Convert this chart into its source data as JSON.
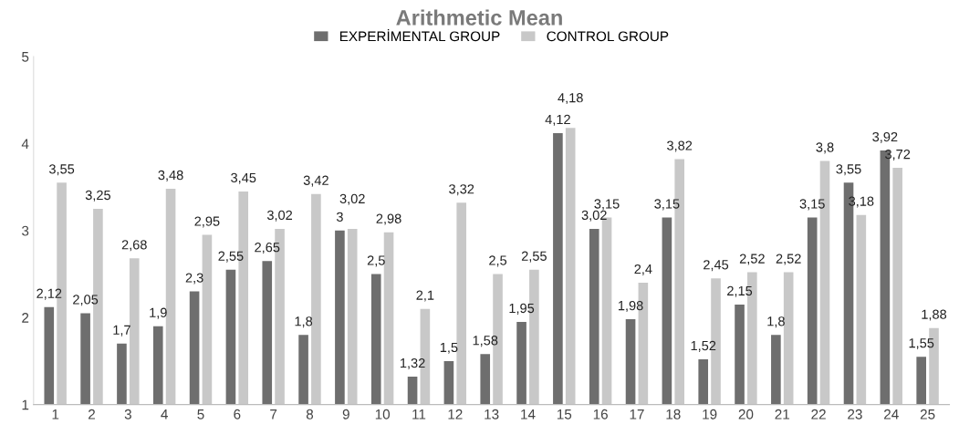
{
  "chart_data": {
    "type": "bar",
    "title": "Arithmetic Mean",
    "categories": [
      "1",
      "2",
      "3",
      "4",
      "5",
      "6",
      "7",
      "8",
      "9",
      "10",
      "11",
      "12",
      "13",
      "14",
      "15",
      "16",
      "17",
      "18",
      "19",
      "20",
      "21",
      "22",
      "23",
      "24",
      "25"
    ],
    "series": [
      {
        "name": "EXPERİMENTAL GROUP",
        "color": "#6e6e6e",
        "values": [
          2.12,
          2.05,
          1.7,
          1.9,
          2.3,
          2.55,
          2.65,
          1.8,
          3,
          2.5,
          1.32,
          1.5,
          1.58,
          1.95,
          4.12,
          3.02,
          1.98,
          3.15,
          1.52,
          2.15,
          1.8,
          3.15,
          3.55,
          3.92,
          1.55
        ],
        "value_labels": [
          "2,12",
          "2,05",
          "1,7",
          "1,9",
          "2,3",
          "2,55",
          "2,65",
          "1,8",
          "3",
          "2,5",
          "1,32",
          "1,5",
          "1,58",
          "1,95",
          "4,12",
          "3,02",
          "1,98",
          "3,15",
          "1,52",
          "2,15",
          "1,8",
          "3,15",
          "3,55",
          "3,92",
          "1,55"
        ]
      },
      {
        "name": "CONTROL GROUP",
        "color": "#c8c8c8",
        "values": [
          3.55,
          3.25,
          2.68,
          3.48,
          2.95,
          3.45,
          3.02,
          3.42,
          3.02,
          2.98,
          2.1,
          3.32,
          2.5,
          2.55,
          4.18,
          3.15,
          2.4,
          3.82,
          2.45,
          2.52,
          2.52,
          3.8,
          3.18,
          3.72,
          1.88
        ],
        "value_labels": [
          "3,55",
          "3,25",
          "2,68",
          "3,48",
          "2,95",
          "3,45",
          "3,02",
          "3,42",
          "3,02",
          "2,98",
          "2,1",
          "3,32",
          "2,5",
          "2,55",
          "4,18",
          "3,15",
          "2,4",
          "3,82",
          "2,45",
          "2,52",
          "2,52",
          "3,8",
          "3,18",
          "3,72",
          "1,88"
        ]
      }
    ],
    "ylim": [
      1,
      5
    ],
    "yticks": [
      1,
      2,
      3,
      4,
      5
    ],
    "grid": false,
    "legend": "top"
  }
}
